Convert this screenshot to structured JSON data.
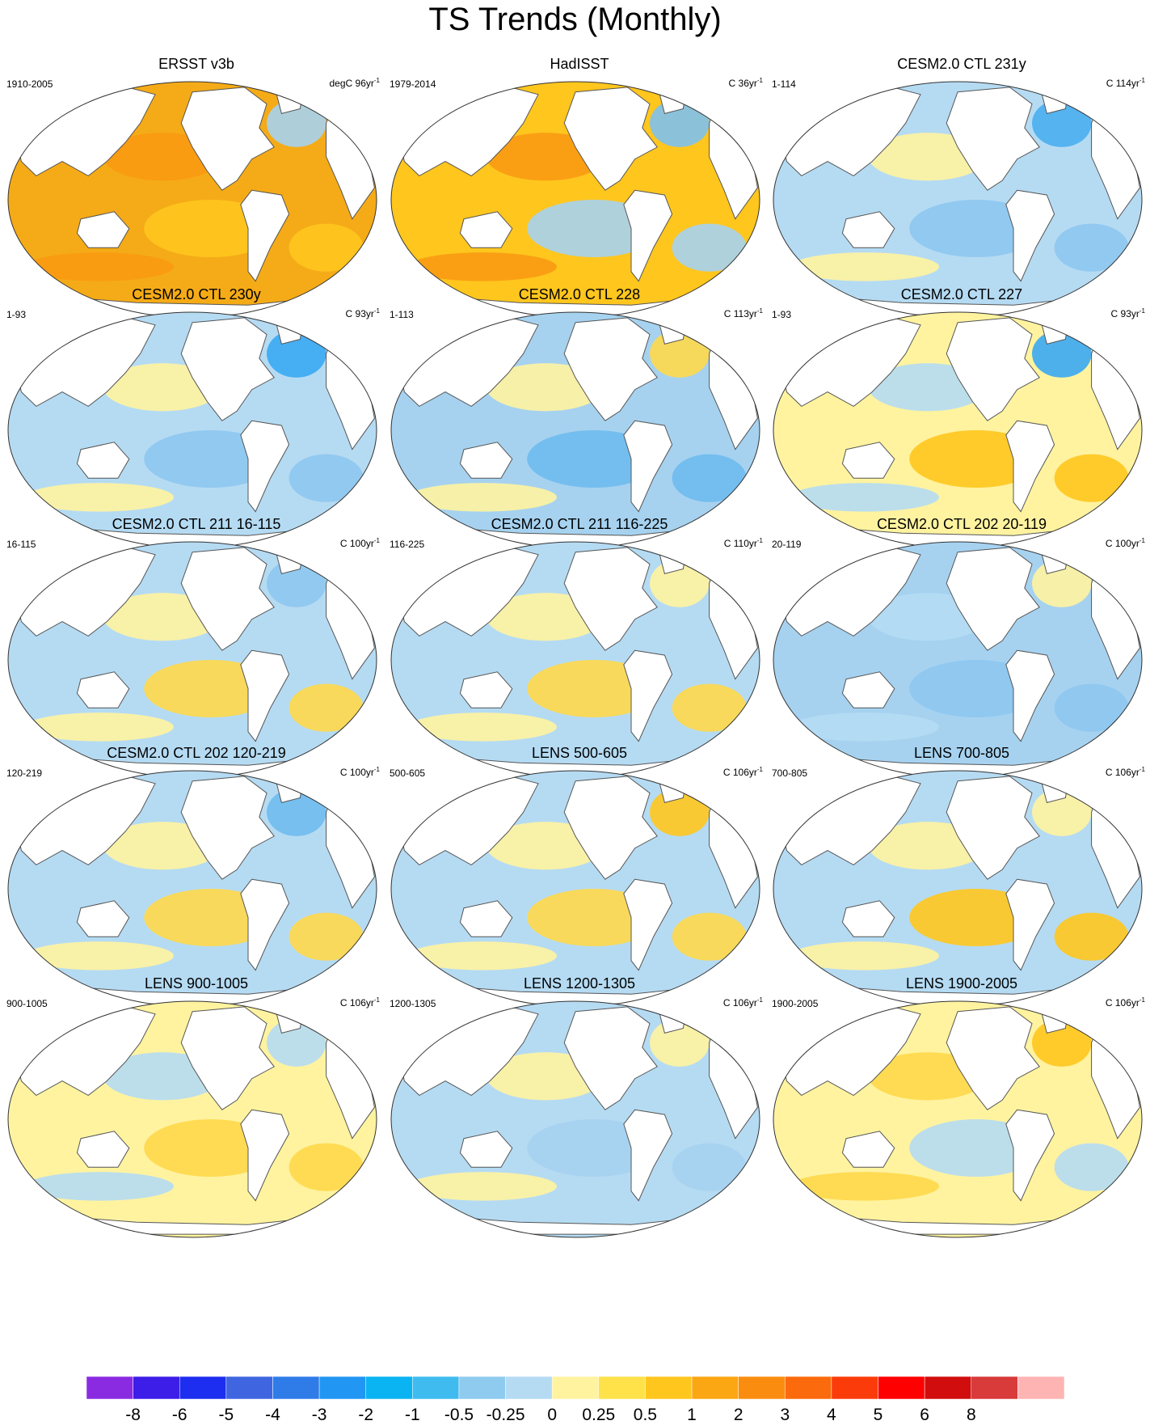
{
  "title": "TS Trends (Monthly)",
  "panels": [
    {
      "title": "ERSST v3b",
      "left": "1910-2005",
      "unit_prefix": "degC",
      "years": "96",
      "unit_suffix": "yr",
      "exp": "-1",
      "base": "#f5ab17",
      "spots": [
        "#fa9a12",
        "#ffc61e",
        "#a6d2f0"
      ]
    },
    {
      "title": "HadISST",
      "left": "1979-2014",
      "unit_prefix": "C",
      "years": "36",
      "unit_suffix": "yr",
      "exp": "-1",
      "base": "#ffc61e",
      "spots": [
        "#fa9a12",
        "#a6d2f0",
        "#7fc0ee"
      ]
    },
    {
      "title": "CESM2.0 CTL 231y",
      "left": "1-114",
      "unit_prefix": "C",
      "years": "114",
      "unit_suffix": "yr",
      "exp": "-1",
      "base": "#b5dbf3",
      "spots": [
        "#fff3a0",
        "#8ec7ef",
        "#4aaef0"
      ]
    },
    {
      "title": "CESM2.0 CTL 230y",
      "left": "1-93",
      "unit_prefix": "C",
      "years": "93",
      "unit_suffix": "yr",
      "exp": "-1",
      "base": "#b5dbf3",
      "spots": [
        "#fff3a0",
        "#8ec7ef",
        "#3aa8f2"
      ]
    },
    {
      "title": "CESM2.0 CTL 228",
      "left": "1-113",
      "unit_prefix": "C",
      "years": "113",
      "unit_suffix": "yr",
      "exp": "-1",
      "base": "#a6d2f0",
      "spots": [
        "#fff3a0",
        "#6fbbee",
        "#ffd84a"
      ]
    },
    {
      "title": "CESM2.0 CTL 227",
      "left": "1-93",
      "unit_prefix": "C",
      "years": "93",
      "unit_suffix": "yr",
      "exp": "-1",
      "base": "#fff3a0",
      "spots": [
        "#b5dbf3",
        "#ffc61e",
        "#3aa8f2"
      ]
    },
    {
      "title": "CESM2.0 CTL 211 16-115",
      "left": "16-115",
      "unit_prefix": "C",
      "years": "100",
      "unit_suffix": "yr",
      "exp": "-1",
      "base": "#b5dbf3",
      "spots": [
        "#fff3a0",
        "#ffd84a",
        "#8ec7ef"
      ]
    },
    {
      "title": "CESM2.0 CTL 211 116-225",
      "left": "116-225",
      "unit_prefix": "C",
      "years": "110",
      "unit_suffix": "yr",
      "exp": "-1",
      "base": "#b5dbf3",
      "spots": [
        "#fff3a0",
        "#ffd84a",
        "#fff3a0"
      ]
    },
    {
      "title": "CESM2.0 CTL 202 20-119",
      "left": "20-119",
      "unit_prefix": "C",
      "years": "100",
      "unit_suffix": "yr",
      "exp": "-1",
      "base": "#a6d2f0",
      "spots": [
        "#b5dbf3",
        "#8ec7ef",
        "#fff3a0"
      ]
    },
    {
      "title": "CESM2.0 CTL 202 120-219",
      "left": "120-219",
      "unit_prefix": "C",
      "years": "100",
      "unit_suffix": "yr",
      "exp": "-1",
      "base": "#b5dbf3",
      "spots": [
        "#fff3a0",
        "#ffd84a",
        "#6fbbee"
      ]
    },
    {
      "title": "LENS 500-605",
      "left": "500-605",
      "unit_prefix": "C",
      "years": "106",
      "unit_suffix": "yr",
      "exp": "-1",
      "base": "#b5dbf3",
      "spots": [
        "#fff3a0",
        "#ffd84a",
        "#ffc61e"
      ]
    },
    {
      "title": "LENS 700-805",
      "left": "700-805",
      "unit_prefix": "C",
      "years": "106",
      "unit_suffix": "yr",
      "exp": "-1",
      "base": "#b5dbf3",
      "spots": [
        "#fff3a0",
        "#ffc61e",
        "#fff3a0"
      ]
    },
    {
      "title": "LENS 900-1005",
      "left": "900-1005",
      "unit_prefix": "C",
      "years": "106",
      "unit_suffix": "yr",
      "exp": "-1",
      "base": "#fff3a0",
      "spots": [
        "#b5dbf3",
        "#ffd84a",
        "#b5dbf3"
      ]
    },
    {
      "title": "LENS 1200-1305",
      "left": "1200-1305",
      "unit_prefix": "C",
      "years": "106",
      "unit_suffix": "yr",
      "exp": "-1",
      "base": "#b5dbf3",
      "spots": [
        "#fff3a0",
        "#a6d2f0",
        "#fff3a0"
      ]
    },
    {
      "title": "LENS 1900-2005",
      "left": "1900-2005",
      "unit_prefix": "C",
      "years": "106",
      "unit_suffix": "yr",
      "exp": "-1",
      "base": "#fff3a0",
      "spots": [
        "#ffd84a",
        "#b5dbf3",
        "#ffc61e"
      ]
    }
  ],
  "colorbar": {
    "colors": [
      "#8a2be2",
      "#3d1de8",
      "#1d2ef0",
      "#3f66e0",
      "#2f7ce8",
      "#2196f3",
      "#0ab4f2",
      "#3fbbf0",
      "#8ecbef",
      "#b5dbf3",
      "#fff3a0",
      "#ffe14a",
      "#ffc61e",
      "#fba713",
      "#fa8d10",
      "#fb6a0c",
      "#fb3c0a",
      "#ff0000",
      "#d10d0d",
      "#d93a3a",
      "#ffb4b4"
    ],
    "labels": [
      "-8",
      "-6",
      "-5",
      "-4",
      "-3",
      "-2",
      "-1",
      "-0.5",
      "-0.25",
      "0",
      "0.25",
      "0.5",
      "1",
      "2",
      "3",
      "4",
      "5",
      "6",
      "8"
    ]
  }
}
